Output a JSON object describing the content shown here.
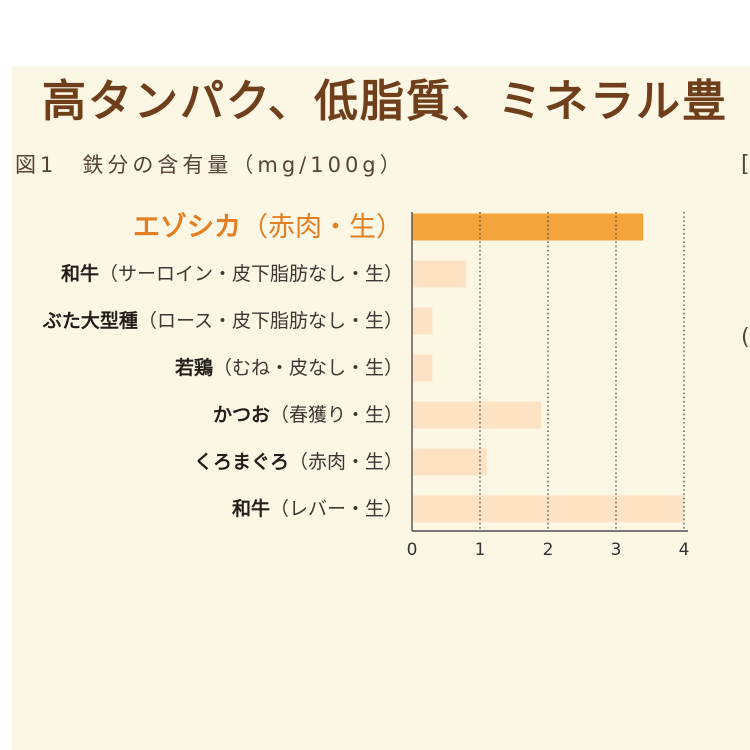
{
  "headline": "高タンパク、低脂質、ミネラル豊",
  "right_edge_fragments": [
    "[",
    "("
  ],
  "colors": {
    "page_background": "#ffffff",
    "panel_background": "#fcf7e5",
    "headline": "#6f3f1c",
    "figure_title": "#54433a",
    "highlight_bar": "#f3a53b",
    "bar": "#fde2c3",
    "highlight_label": "#e27f22",
    "label_name": "#241e1b",
    "label_note": "#3f3632",
    "axis": "#4f4f4f",
    "tick_label": "#333333"
  },
  "chart_data": {
    "type": "bar",
    "orientation": "horizontal",
    "title": "図1　鉄分の含有量（mg/100g）",
    "categories": [
      "エゾシカ（赤肉・生）",
      "和牛（サーロイン・皮下脂肪なし・生）",
      "ぶた大型種（ロース・皮下脂肪なし・生）",
      "若鶏（むね・皮なし・生）",
      "かつお（春獲り・生）",
      "くろまぐろ（赤肉・生）",
      "和牛（レバー・生）"
    ],
    "values": [
      3.4,
      0.8,
      0.3,
      0.3,
      1.9,
      1.1,
      4.0
    ],
    "highlight_index": 0,
    "xlim": [
      0,
      4
    ],
    "ticks": [
      0,
      1,
      2,
      3,
      4
    ],
    "grid": true
  }
}
